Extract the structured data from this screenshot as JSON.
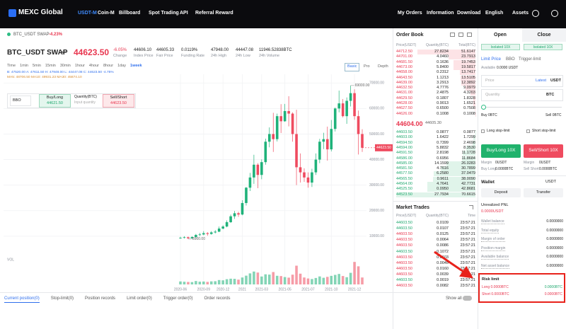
{
  "nav": {
    "logo": "MEXC Global",
    "items": [
      "USDT-M",
      "Coin-M",
      "Billboard",
      "Spot Trading",
      "API",
      "Referral Reward"
    ],
    "right_items": [
      "My Orders",
      "Information",
      "Download",
      "English",
      "Assets"
    ]
  },
  "ticker": {
    "breadcrumb": "BTC_USDT SWAP",
    "breadcrumb_change": "-4.23%",
    "symbol": "BTC_USDT SWAP",
    "price": "44623.50",
    "stats": [
      {
        "value": "-6.05%",
        "label": "Change"
      },
      {
        "value": "44606.10",
        "label": "Index Price"
      },
      {
        "value": "44605.33",
        "label": "Fair Price"
      },
      {
        "value": "0.0119%",
        "label": "Funding Rate"
      },
      {
        "value": "47948.00",
        "label": "24h High"
      },
      {
        "value": "44447.08",
        "label": "24h Low"
      },
      {
        "value": "11946.52838BTC",
        "label": "24h Volume"
      }
    ]
  },
  "chart_toolbar": {
    "intervals": [
      "Time",
      "1min",
      "5min",
      "15min",
      "30min",
      "1hour",
      "4hour",
      "8hour",
      "1day",
      "1week"
    ],
    "active_interval": 9,
    "views": [
      "Basic",
      "Pro",
      "Depth"
    ],
    "active_view": 0,
    "indicators": [
      "B: 47520.00  A: 47611.50  H: 47948.00  L: 44447.08  C: 44623.50  -4.75%",
      "MA5: 48706.50  MA10: 49931.23  MA30: 45874.10"
    ]
  },
  "quick_order": {
    "type": "BBO",
    "buy": "Buy/Long",
    "buy_price": "44621.50",
    "qty_label": "Quantity(BTC)",
    "qty_placeholder": "Input quantity",
    "sell": "Sell/Short",
    "sell_price": "44623.50"
  },
  "chart_data": {
    "type": "candlestick",
    "categories": [
      "2020-06",
      null,
      null,
      null,
      null,
      null,
      "2020-09",
      null,
      null,
      null,
      null,
      "2020-12",
      null,
      null,
      null,
      null,
      "2021",
      null,
      null,
      null,
      null,
      "2021-03",
      null,
      null,
      null,
      null,
      null,
      "2021-05",
      null,
      null,
      null,
      null,
      null,
      "2021-07",
      null,
      null,
      null,
      null,
      null,
      "2021-10",
      null,
      null,
      null,
      null,
      null,
      "2021-12",
      null,
      null
    ],
    "open": [
      9300,
      9400,
      9600,
      9200,
      9700,
      10500,
      10700,
      11200,
      10900,
      11500,
      11800,
      13000,
      13800,
      15500,
      17800,
      19000,
      18500,
      23000,
      29000,
      33000,
      38000,
      34000,
      39000,
      47000,
      50000,
      48000,
      57000,
      55000,
      59000,
      58000,
      50000,
      37000,
      35000,
      33000,
      31000,
      35000,
      40000,
      47000,
      48000,
      44000,
      52000,
      60000,
      62000,
      57000,
      63000,
      66000,
      57000,
      50000
    ],
    "high": [
      9800,
      10000,
      9900,
      10000,
      10900,
      11300,
      12000,
      11600,
      12000,
      12400,
      13800,
      14300,
      16200,
      18500,
      19900,
      19600,
      24100,
      29300,
      34800,
      41900,
      38600,
      40100,
      48200,
      52600,
      58300,
      58000,
      61700,
      61800,
      64800,
      58500,
      59500,
      42400,
      36600,
      35000,
      36400,
      42400,
      48100,
      50500,
      52900,
      55500,
      60400,
      67000,
      63700,
      64300,
      69000,
      67500,
      59200,
      51900
    ],
    "low": [
      9000,
      9100,
      8900,
      9000,
      9500,
      10100,
      10400,
      10200,
      10600,
      11100,
      11600,
      12700,
      13500,
      15200,
      16800,
      17600,
      18200,
      22000,
      27700,
      30500,
      28800,
      32300,
      38000,
      44800,
      43000,
      47100,
      50400,
      54800,
      53000,
      47000,
      30000,
      31000,
      31300,
      29000,
      29300,
      34000,
      38600,
      44100,
      39600,
      43200,
      51000,
      58500,
      56500,
      54000,
      60800,
      55600,
      42000,
      43000
    ],
    "close": [
      9400,
      9600,
      9200,
      9700,
      10500,
      10700,
      11200,
      10900,
      11500,
      11800,
      13000,
      13800,
      15500,
      17800,
      19000,
      18500,
      23000,
      29000,
      33000,
      38000,
      34000,
      39000,
      47000,
      50000,
      48000,
      57000,
      55000,
      59000,
      58000,
      50000,
      37000,
      35000,
      33000,
      31000,
      35000,
      40000,
      47000,
      48000,
      44000,
      52000,
      60000,
      62000,
      57000,
      63000,
      66000,
      57000,
      50000,
      44623.5
    ],
    "volume": [
      4200,
      3800,
      3500,
      3300,
      4800,
      3900,
      4100,
      3600,
      4300,
      4500,
      6200,
      5800,
      7400,
      8100,
      7900,
      6800,
      9800,
      12400,
      15600,
      18200,
      16800,
      11200,
      14300,
      13900,
      17500,
      12200,
      11800,
      10400,
      9600,
      13800,
      26500,
      15200,
      9800,
      8400,
      7600,
      9100,
      11300,
      9400,
      10700,
      12100,
      13500,
      14800,
      11900,
      10200,
      16400,
      31800,
      25600,
      9800
    ],
    "volume_label": "VOL",
    "volume_ylim": [
      0,
      40000
    ],
    "ylim": [
      0,
      72000
    ],
    "yticks": [
      {
        "value": 10000,
        "label": "10000.00"
      },
      {
        "value": 20000,
        "label": "20000.00"
      },
      {
        "value": 30000,
        "label": "30000.00"
      },
      {
        "value": 40000,
        "label": "40000.00"
      },
      {
        "value": 50000,
        "label": "50000.00"
      },
      {
        "value": 60000,
        "label": "60000.00"
      },
      {
        "value": 70000,
        "label": "70000.00"
      }
    ],
    "high_label": "69000.00",
    "low_label": "8900.00",
    "last_price_label": "44623.50",
    "colors": {
      "up": "#1fb27a",
      "down": "#ef4b5f"
    },
    "grid": true
  },
  "bottom_tabs": {
    "tabs": [
      "Current position(0)",
      "Stop-limit(0)",
      "Position records",
      "Limit order(0)",
      "Trigger order(0)",
      "Order records"
    ],
    "active": 0,
    "show_all": "Show all"
  },
  "order_book": {
    "title": "Order Book",
    "columns": [
      "Price(USDT)",
      "Quantity(BTC)",
      "Total(BTC)"
    ],
    "asks": [
      [
        "44712.50",
        "27.8234",
        "51.6147"
      ],
      [
        "44701.00",
        "4.0460",
        "23.7913"
      ],
      [
        "44681.50",
        "0.1636",
        "19.7453"
      ],
      [
        "44673.00",
        "5.8400",
        "19.5817"
      ],
      [
        "44658.00",
        "0.2312",
        "13.7417"
      ],
      [
        "44643.50",
        "1.1213",
        "13.5105"
      ],
      [
        "44639.00",
        "3.2913",
        "12.3892"
      ],
      [
        "44632.50",
        "4.7776",
        "9.0979"
      ],
      [
        "44631.00",
        "2.4875",
        "4.3203"
      ],
      [
        "44629.50",
        "0.1807",
        "1.8328"
      ],
      [
        "44628.00",
        "0.9013",
        "1.6521"
      ],
      [
        "44627.50",
        "0.6500",
        "0.7508"
      ],
      [
        "44626.00",
        "0.1008",
        "0.1008"
      ]
    ],
    "mid_price": "44604.00",
    "mid_mark": "44605.30",
    "bids": [
      [
        "44603.50",
        "0.0877",
        "0.0877"
      ],
      [
        "44603.00",
        "1.6422",
        "1.7299"
      ],
      [
        "44594.50",
        "0.7399",
        "2.4698"
      ],
      [
        "44594.00",
        "5.8832",
        "8.3530"
      ],
      [
        "44591.50",
        "2.8198",
        "11.1728"
      ],
      [
        "44586.00",
        "0.6956",
        "11.8684"
      ],
      [
        "44585.00",
        "14.1599",
        "26.0283"
      ],
      [
        "44581.50",
        "4.7616",
        "30.7899"
      ],
      [
        "44577.50",
        "6.2580",
        "37.0479"
      ],
      [
        "44565.50",
        "0.9611",
        "38.0090"
      ],
      [
        "44564.00",
        "4.7641",
        "42.7731"
      ],
      [
        "44525.50",
        "0.0950",
        "42.8681"
      ],
      [
        "44523.50",
        "27.7934",
        "70.6615"
      ]
    ]
  },
  "market_trades": {
    "title": "Market Trades",
    "columns": [
      "Price(USDT)",
      "Quantity(BTC)",
      "Time"
    ],
    "rows": [
      {
        "price": "44603.50",
        "qty": "0.0109",
        "time": "23:57:21",
        "color": "#1fa86e"
      },
      {
        "price": "44603.50",
        "qty": "0.0107",
        "time": "23:57:21",
        "color": "#1fa86e"
      },
      {
        "price": "44603.50",
        "qty": "0.0125",
        "time": "23:57:21",
        "color": "#e8364f"
      },
      {
        "price": "44603.50",
        "qty": "0.0064",
        "time": "23:57:21",
        "color": "#e8364f"
      },
      {
        "price": "44603.50",
        "qty": "0.0086",
        "time": "23:57:21",
        "color": "#e8364f"
      },
      {
        "price": "44603.50",
        "qty": "0.1072",
        "time": "23:57:21",
        "color": "#1fa86e"
      },
      {
        "price": "44603.50",
        "qty": "0.0103",
        "time": "23:57:21",
        "color": "#e8364f"
      },
      {
        "price": "44603.50",
        "qty": "0.0045",
        "time": "23:57:21",
        "color": "#e8364f"
      },
      {
        "price": "44603.50",
        "qty": "0.0160",
        "time": "23:57:21",
        "color": "#e8364f"
      },
      {
        "price": "44603.50",
        "qty": "0.0039",
        "time": "23:57:21",
        "color": "#e8364f"
      },
      {
        "price": "44603.50",
        "qty": "0.0019",
        "time": "23:57:21",
        "color": "#1fa86e"
      },
      {
        "price": "44603.50",
        "qty": "0.0082",
        "time": "23:57:21",
        "color": "#e8364f"
      }
    ]
  },
  "trade_panel": {
    "tabs": [
      "Open",
      "Close"
    ],
    "leverage": [
      "Isolated 10X",
      "Isolated 10X"
    ],
    "order_types": [
      "Limit Price",
      "BBO",
      "Trigger-limit"
    ],
    "available_label": "Available",
    "available": "0.0000 USDT",
    "price_placeholder": "Price",
    "price_mode": "Latest",
    "price_unit": "USDT",
    "qty_placeholder": "Quantity",
    "qty_unit": "BTC",
    "buy_amount": "Buy 0BTC",
    "sell_amount": "Sell 0BTC",
    "stop_long": "Long stop-limit",
    "stop_short": "Short stop-limit",
    "buy_btn": "Buy/Long 10X",
    "sell_btn": "Sell/Short 10X",
    "margin_rows": [
      [
        "Margin",
        "0USDT",
        "Margin",
        "0USDT"
      ],
      [
        "Buy Long",
        "0.0000BTC",
        "Sell Short",
        "0.0000BTC"
      ]
    ],
    "wallet_title": "Wallet",
    "wallet_unit": "USDT",
    "deposit": "Deposit",
    "transfer": "Transfer",
    "pnl_label": "Unrealized PNL",
    "pnl": "0.0000USDT",
    "balances": [
      [
        "Wallet balance",
        "0.0000000"
      ],
      [
        "Total equity",
        "0.0000000"
      ],
      [
        "Margin of order",
        "0.0000000"
      ],
      [
        "Position margin",
        "0.0000000"
      ],
      [
        "Available balance",
        "0.0000000"
      ],
      [
        "Net asset balance",
        "0.0000000"
      ]
    ],
    "risk": {
      "title": "Risk limit",
      "rows": [
        [
          "Long 0.0000BTC",
          "0.0000BTC"
        ],
        [
          "Short 0.0000BTC",
          "0.0000BTC"
        ]
      ]
    }
  }
}
